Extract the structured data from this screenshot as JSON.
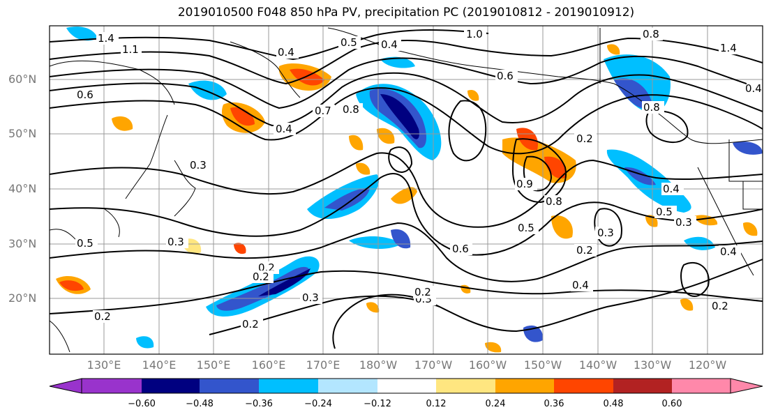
{
  "title": "2019010500 F048 850 hPa PV, precipitation PC (2019010812 - 2019010912)",
  "axes": {
    "lat_labels": [
      "60°N",
      "50°N",
      "40°N",
      "30°N",
      "20°N"
    ],
    "lon_labels": [
      "130°E",
      "140°E",
      "150°E",
      "160°E",
      "170°E",
      "180°W",
      "170°W",
      "160°W",
      "150°W",
      "140°W",
      "130°W",
      "120°W"
    ]
  },
  "colorbar": {
    "colors": [
      "#9933cc",
      "#000080",
      "#3355cc",
      "#00bfff",
      "#b3e6ff",
      "#ffffff",
      "#ffe680",
      "#ffa500",
      "#ff4500",
      "#b22222",
      "#ff88aa"
    ],
    "ticks": [
      "−0.60",
      "−0.48",
      "−0.36",
      "−0.24",
      "−0.12",
      "0.12",
      "0.24",
      "0.36",
      "0.48",
      "0.60"
    ]
  },
  "contour_labels": [
    "1.4",
    "1.1",
    "1.0",
    "0.5",
    "0.4",
    "0.8",
    "0.6",
    "0.7",
    "0.8",
    "0.4",
    "0.2",
    "0.3",
    "0.5",
    "0.6",
    "0.2",
    "0.3",
    "0.2",
    "0.3",
    "0.2",
    "0.4",
    "0.2",
    "0.3",
    "0.5",
    "0.8",
    "0.9",
    "0.6",
    "0.4",
    "0.3",
    "0.4",
    "0.2",
    "0.2",
    "0.2",
    "1.4",
    "0.8",
    "0.5",
    "0.4",
    "0.3",
    "0.4"
  ],
  "colors": {
    "frame": "#000000",
    "grid": "#999999",
    "contour": "#000000"
  }
}
